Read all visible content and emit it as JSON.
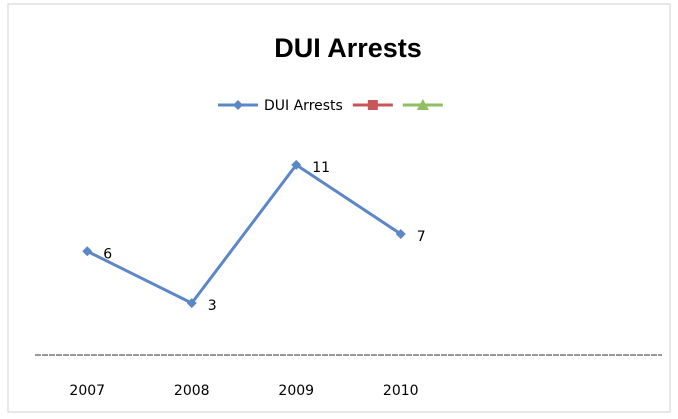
{
  "chart_data": {
    "type": "line",
    "title": "DUI Arrests",
    "categories": [
      "2007",
      "2008",
      "2009",
      "2010",
      null,
      null
    ],
    "series": [
      {
        "name": "DUI Arrests",
        "color": "#5b87c8",
        "marker": "diamond",
        "values": [
          6,
          3,
          11,
          7,
          null,
          null
        ]
      },
      {
        "name": null,
        "color": "#c8555a",
        "marker": "square",
        "values": [
          null,
          null,
          null,
          null,
          null,
          null
        ]
      },
      {
        "name": null,
        "color": "#8fbf60",
        "marker": "triangle",
        "values": [
          null,
          null,
          null,
          null,
          null,
          null
        ]
      }
    ],
    "ylim": [
      0,
      14
    ],
    "data_labels": true,
    "legend": "top"
  }
}
